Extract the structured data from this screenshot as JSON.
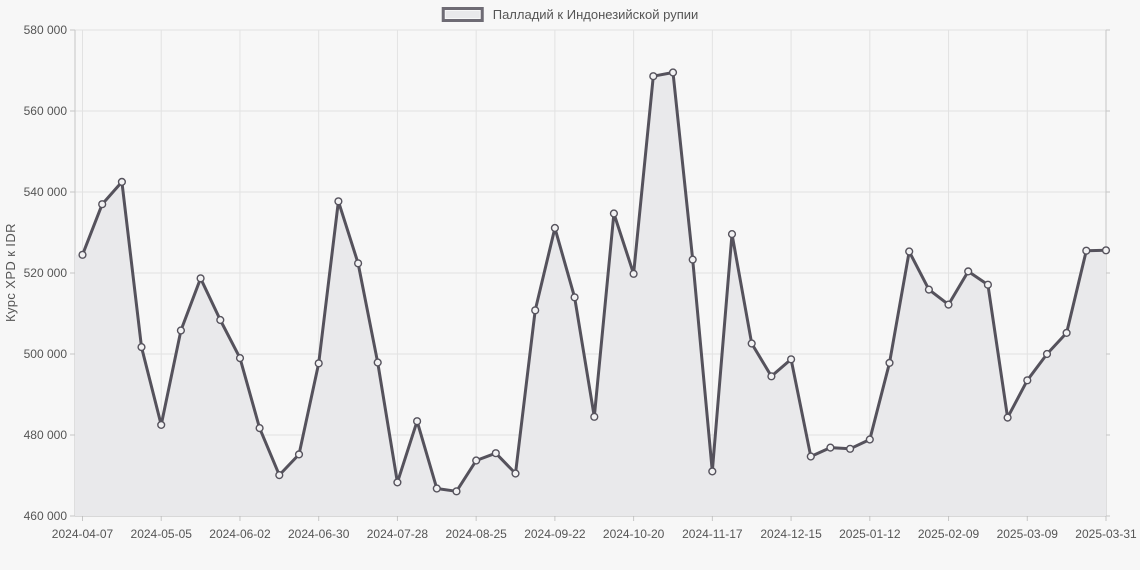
{
  "legend": {
    "label": "Палладий к Индонезийской рупии"
  },
  "colors": {
    "background": "#f7f7f7",
    "line": "#55525c",
    "area_fill": "#e9e9eb",
    "marker_fill": "#f2f2f3",
    "grid": "#e2e2e2",
    "axis": "#c6c6c6",
    "axis_bottom": "#b8b8b8",
    "text": "#555555"
  },
  "chart_data": {
    "type": "area",
    "title": "Палладий к Индонезийской рупии",
    "xlabel": "",
    "ylabel": "Курс XPD к IDR",
    "ylim": [
      460000,
      580000
    ],
    "grid": true,
    "legend_position": "top-center",
    "y_ticks": [
      460000,
      480000,
      500000,
      520000,
      540000,
      560000,
      580000
    ],
    "y_tick_labels": [
      "460 000",
      "480 000",
      "500 000",
      "520 000",
      "540 000",
      "560 000",
      "580 000"
    ],
    "x": [
      "2024-04-07",
      "2024-04-14",
      "2024-04-21",
      "2024-04-28",
      "2024-05-05",
      "2024-05-12",
      "2024-05-19",
      "2024-05-26",
      "2024-06-02",
      "2024-06-09",
      "2024-06-16",
      "2024-06-23",
      "2024-06-30",
      "2024-07-07",
      "2024-07-14",
      "2024-07-21",
      "2024-07-28",
      "2024-08-04",
      "2024-08-11",
      "2024-08-18",
      "2024-08-25",
      "2024-09-01",
      "2024-09-08",
      "2024-09-15",
      "2024-09-22",
      "2024-09-29",
      "2024-10-06",
      "2024-10-13",
      "2024-10-20",
      "2024-10-27",
      "2024-11-03",
      "2024-11-10",
      "2024-11-17",
      "2024-11-24",
      "2024-12-01",
      "2024-12-08",
      "2024-12-15",
      "2024-12-22",
      "2024-12-29",
      "2025-01-05",
      "2025-01-12",
      "2025-01-19",
      "2025-01-26",
      "2025-02-02",
      "2025-02-09",
      "2025-02-16",
      "2025-02-23",
      "2025-03-02",
      "2025-03-09",
      "2025-03-16",
      "2025-03-23",
      "2025-03-30",
      "2025-03-31"
    ],
    "x_tick_indices": [
      0,
      4,
      8,
      12,
      16,
      20,
      24,
      28,
      32,
      36,
      40,
      44,
      48,
      52
    ],
    "x_tick_labels": [
      "2024-04-07",
      "2024-05-05",
      "2024-06-02",
      "2024-06-30",
      "2024-07-28",
      "2024-08-25",
      "2024-09-22",
      "2024-10-20",
      "2024-11-17",
      "2024-12-15",
      "2025-01-12",
      "2025-02-09",
      "2025-03-09",
      "2025-03-31"
    ],
    "series": [
      {
        "name": "Палладий к Индонезийской рупии",
        "values": [
          524500,
          537000,
          542500,
          501700,
          482500,
          505800,
          518700,
          508400,
          499000,
          481700,
          470100,
          475200,
          497700,
          537700,
          522400,
          497900,
          468300,
          483400,
          466800,
          466100,
          473700,
          475500,
          470500,
          510800,
          531100,
          514000,
          484500,
          534700,
          519800,
          568600,
          569500,
          523300,
          471000,
          529600,
          502600,
          494500,
          498700,
          474700,
          476900,
          476600,
          478900,
          497800,
          525300,
          515900,
          512200,
          520400,
          517100,
          484300,
          493500,
          500000,
          505200,
          525500,
          525600
        ]
      }
    ]
  }
}
